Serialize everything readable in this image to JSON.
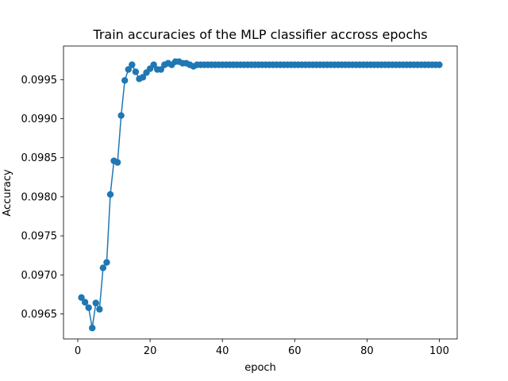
{
  "chart_data": {
    "type": "line",
    "title": "Train accuracies of the MLP classifier accross epochs",
    "xlabel": "epoch",
    "ylabel": "Accuracy",
    "xlim": [
      -3.95,
      104.95
    ],
    "ylim": [
      0.09618,
      0.09993
    ],
    "xticks": [
      0,
      20,
      40,
      60,
      80,
      100
    ],
    "xtick_labels": [
      "0",
      "20",
      "40",
      "60",
      "80",
      "100"
    ],
    "yticks": [
      0.0965,
      0.097,
      0.0975,
      0.098,
      0.0985,
      0.099,
      0.0995
    ],
    "ytick_labels": [
      "0.0965",
      "0.0970",
      "0.0975",
      "0.0980",
      "0.0985",
      "0.0990",
      "0.0995"
    ],
    "grid": false,
    "legend": "none",
    "marker": "circle",
    "color": "#1f77b4",
    "x": [
      1,
      2,
      3,
      4,
      5,
      6,
      7,
      8,
      9,
      10,
      11,
      12,
      13,
      14,
      15,
      16,
      17,
      18,
      19,
      20,
      21,
      22,
      23,
      24,
      25,
      26,
      27,
      28,
      29,
      30,
      31,
      32,
      33,
      34,
      35,
      36,
      37,
      38,
      39,
      40,
      41,
      42,
      43,
      44,
      45,
      46,
      47,
      48,
      49,
      50,
      51,
      52,
      53,
      54,
      55,
      56,
      57,
      58,
      59,
      60,
      61,
      62,
      63,
      64,
      65,
      66,
      67,
      68,
      69,
      70,
      71,
      72,
      73,
      74,
      75,
      76,
      77,
      78,
      79,
      80,
      81,
      82,
      83,
      84,
      85,
      86,
      87,
      88,
      89,
      90,
      91,
      92,
      93,
      94,
      95,
      96,
      97,
      98,
      99,
      100
    ],
    "y": [
      0.09671,
      0.09665,
      0.09658,
      0.09632,
      0.09664,
      0.09656,
      0.09709,
      0.09716,
      0.09803,
      0.09846,
      0.09844,
      0.09904,
      0.09949,
      0.09963,
      0.09969,
      0.0996,
      0.09951,
      0.09953,
      0.09959,
      0.09964,
      0.09969,
      0.09963,
      0.09963,
      0.09969,
      0.09971,
      0.09969,
      0.09973,
      0.09973,
      0.09971,
      0.09971,
      0.09969,
      0.09967,
      0.09969,
      0.09969,
      0.09969,
      0.09969,
      0.09969,
      0.09969,
      0.09969,
      0.09969,
      0.09969,
      0.09969,
      0.09969,
      0.09969,
      0.09969,
      0.09969,
      0.09969,
      0.09969,
      0.09969,
      0.09969,
      0.09969,
      0.09969,
      0.09969,
      0.09969,
      0.09969,
      0.09969,
      0.09969,
      0.09969,
      0.09969,
      0.09969,
      0.09969,
      0.09969,
      0.09969,
      0.09969,
      0.09969,
      0.09969,
      0.09969,
      0.09969,
      0.09969,
      0.09969,
      0.09969,
      0.09969,
      0.09969,
      0.09969,
      0.09969,
      0.09969,
      0.09969,
      0.09969,
      0.09969,
      0.09969,
      0.09969,
      0.09969,
      0.09969,
      0.09969,
      0.09969,
      0.09969,
      0.09969,
      0.09969,
      0.09969,
      0.09969,
      0.09969,
      0.09969,
      0.09969,
      0.09969,
      0.09969,
      0.09969,
      0.09969,
      0.09969,
      0.09969,
      0.09969
    ]
  }
}
